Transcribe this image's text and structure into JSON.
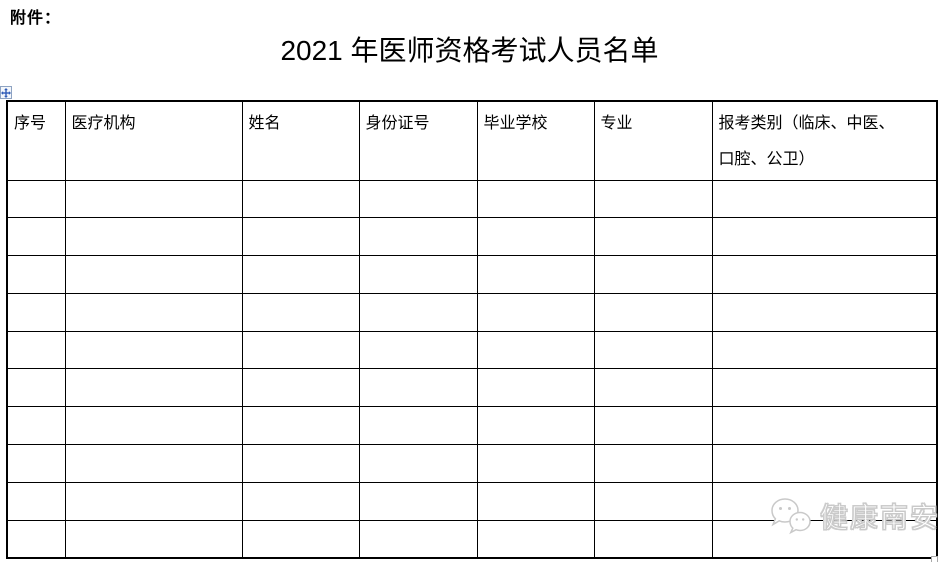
{
  "document": {
    "attachment_label": "附件：",
    "title": "2021 年医师资格考试人员名单"
  },
  "table": {
    "headers": [
      "序号",
      "医疗机构",
      "姓名",
      "身份证号",
      "毕业学校",
      "专业",
      "报考类别（临床、中医、口腔、公卫）"
    ],
    "row_count": 10,
    "column_count": 7
  },
  "watermark": {
    "icon": "wechat-icon",
    "text": "健康南安"
  },
  "icons": {
    "move_handle": "table-move-handle-icon",
    "resize_handle": "table-resize-handle-icon"
  },
  "colors": {
    "text": "#000000",
    "border": "#000000",
    "watermark_outline": "#c9c9c9",
    "handle_arrow": "#2f5bb7"
  }
}
